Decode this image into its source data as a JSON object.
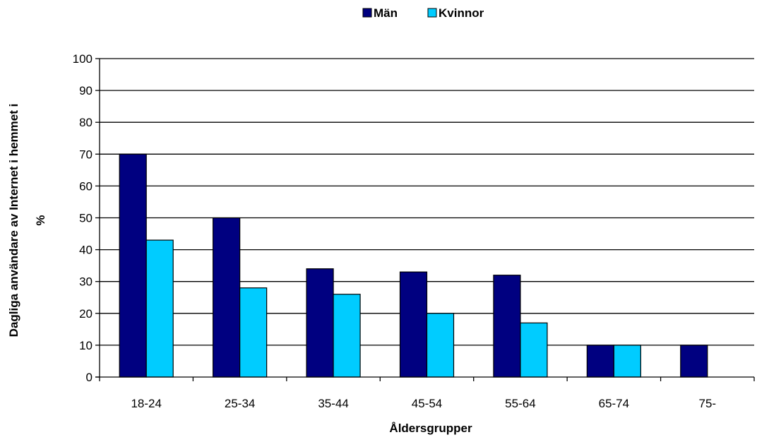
{
  "chart_data": {
    "type": "bar",
    "categories": [
      "18-24",
      "25-34",
      "35-44",
      "45-54",
      "55-64",
      "65-74",
      "75-"
    ],
    "series": [
      {
        "name": "Män",
        "color": "#000080",
        "values": [
          70,
          50,
          34,
          33,
          32,
          10,
          10
        ]
      },
      {
        "name": "Kvinnor",
        "color": "#00CCFF",
        "values": [
          43,
          28,
          26,
          20,
          17,
          10,
          null
        ]
      }
    ],
    "xlabel": "Åldersgrupper",
    "ylabel_lines": [
      "Dagliga användare av Internet i hemmet i",
      "%"
    ],
    "ylim": [
      0,
      100
    ],
    "yticks": [
      0,
      10,
      20,
      30,
      40,
      50,
      60,
      70,
      80,
      90,
      100
    ],
    "grid": true,
    "legend_position": "top"
  }
}
